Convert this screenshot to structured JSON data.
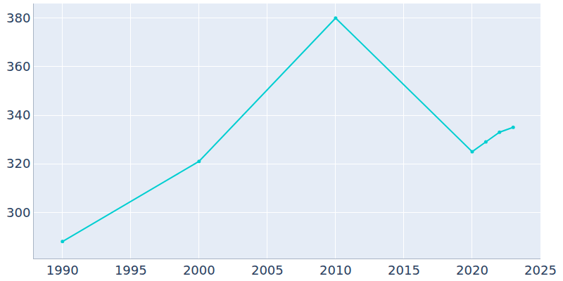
{
  "chart_data": {
    "type": "line",
    "x": [
      1990,
      2000,
      2010,
      2020,
      2021,
      2022,
      2023
    ],
    "values": [
      288,
      321,
      380,
      325,
      329,
      333,
      335
    ],
    "color": "#00ced1",
    "marker": "circle",
    "xlim": [
      1987.9,
      2025
    ],
    "ylim": [
      281,
      386
    ],
    "xticks": [
      1990,
      1995,
      2000,
      2005,
      2010,
      2015,
      2020,
      2025
    ],
    "yticks": [
      300,
      320,
      340,
      360,
      380
    ],
    "grid": true
  }
}
